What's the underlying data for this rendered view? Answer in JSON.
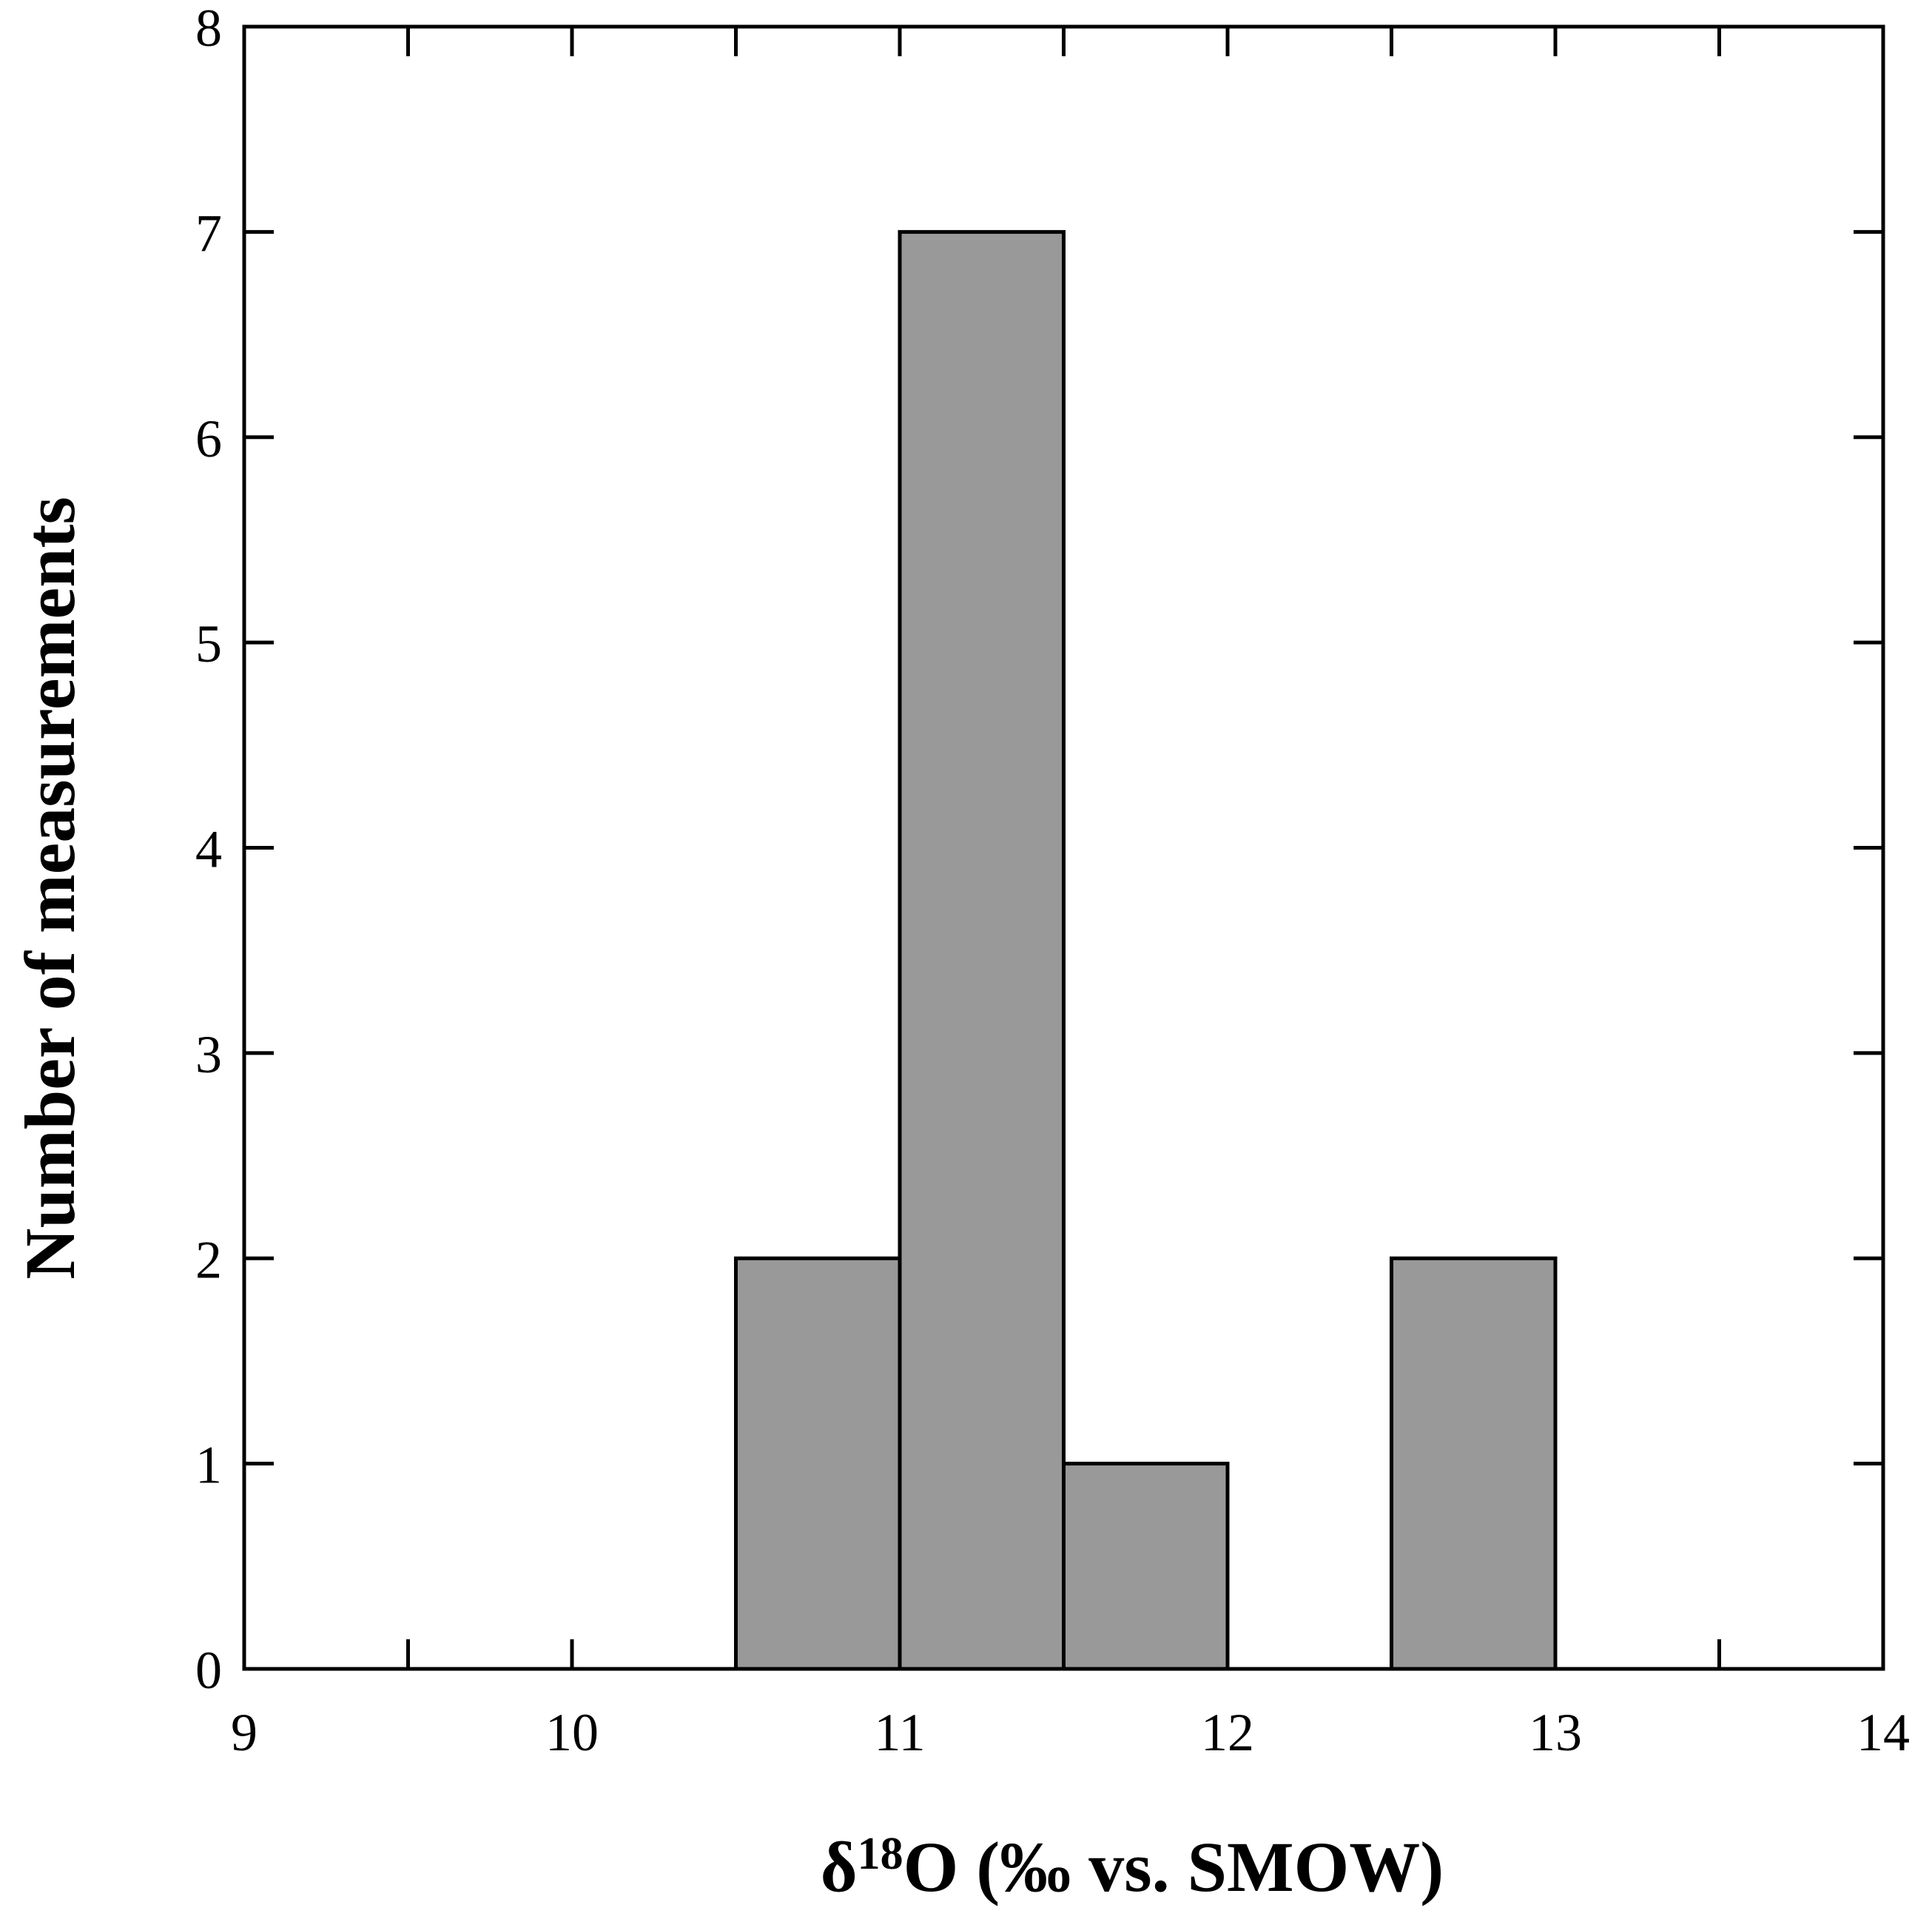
{
  "chart_data": {
    "type": "bar",
    "title": "",
    "xlabel_parts": {
      "delta": "δ",
      "sup": "18",
      "rest": "O (‰  vs. SMOW)"
    },
    "ylabel": "Number of measurements",
    "xlim": [
      9,
      14
    ],
    "ylim": [
      0,
      8
    ],
    "x_ticks": [
      9,
      10,
      11,
      12,
      13,
      14
    ],
    "x_minor_ticks": [
      9.5,
      10.5,
      11.5,
      12.5,
      13.5
    ],
    "y_ticks": [
      0,
      1,
      2,
      3,
      4,
      5,
      6,
      7,
      8
    ],
    "bin_width": 0.5,
    "bins": [
      {
        "start": 10.5,
        "end": 11.0,
        "count": 2
      },
      {
        "start": 11.0,
        "end": 11.5,
        "count": 7
      },
      {
        "start": 11.5,
        "end": 12.0,
        "count": 1
      },
      {
        "start": 12.5,
        "end": 13.0,
        "count": 2
      }
    ],
    "bar_color": "#999999",
    "grid": false,
    "legend": "none"
  }
}
